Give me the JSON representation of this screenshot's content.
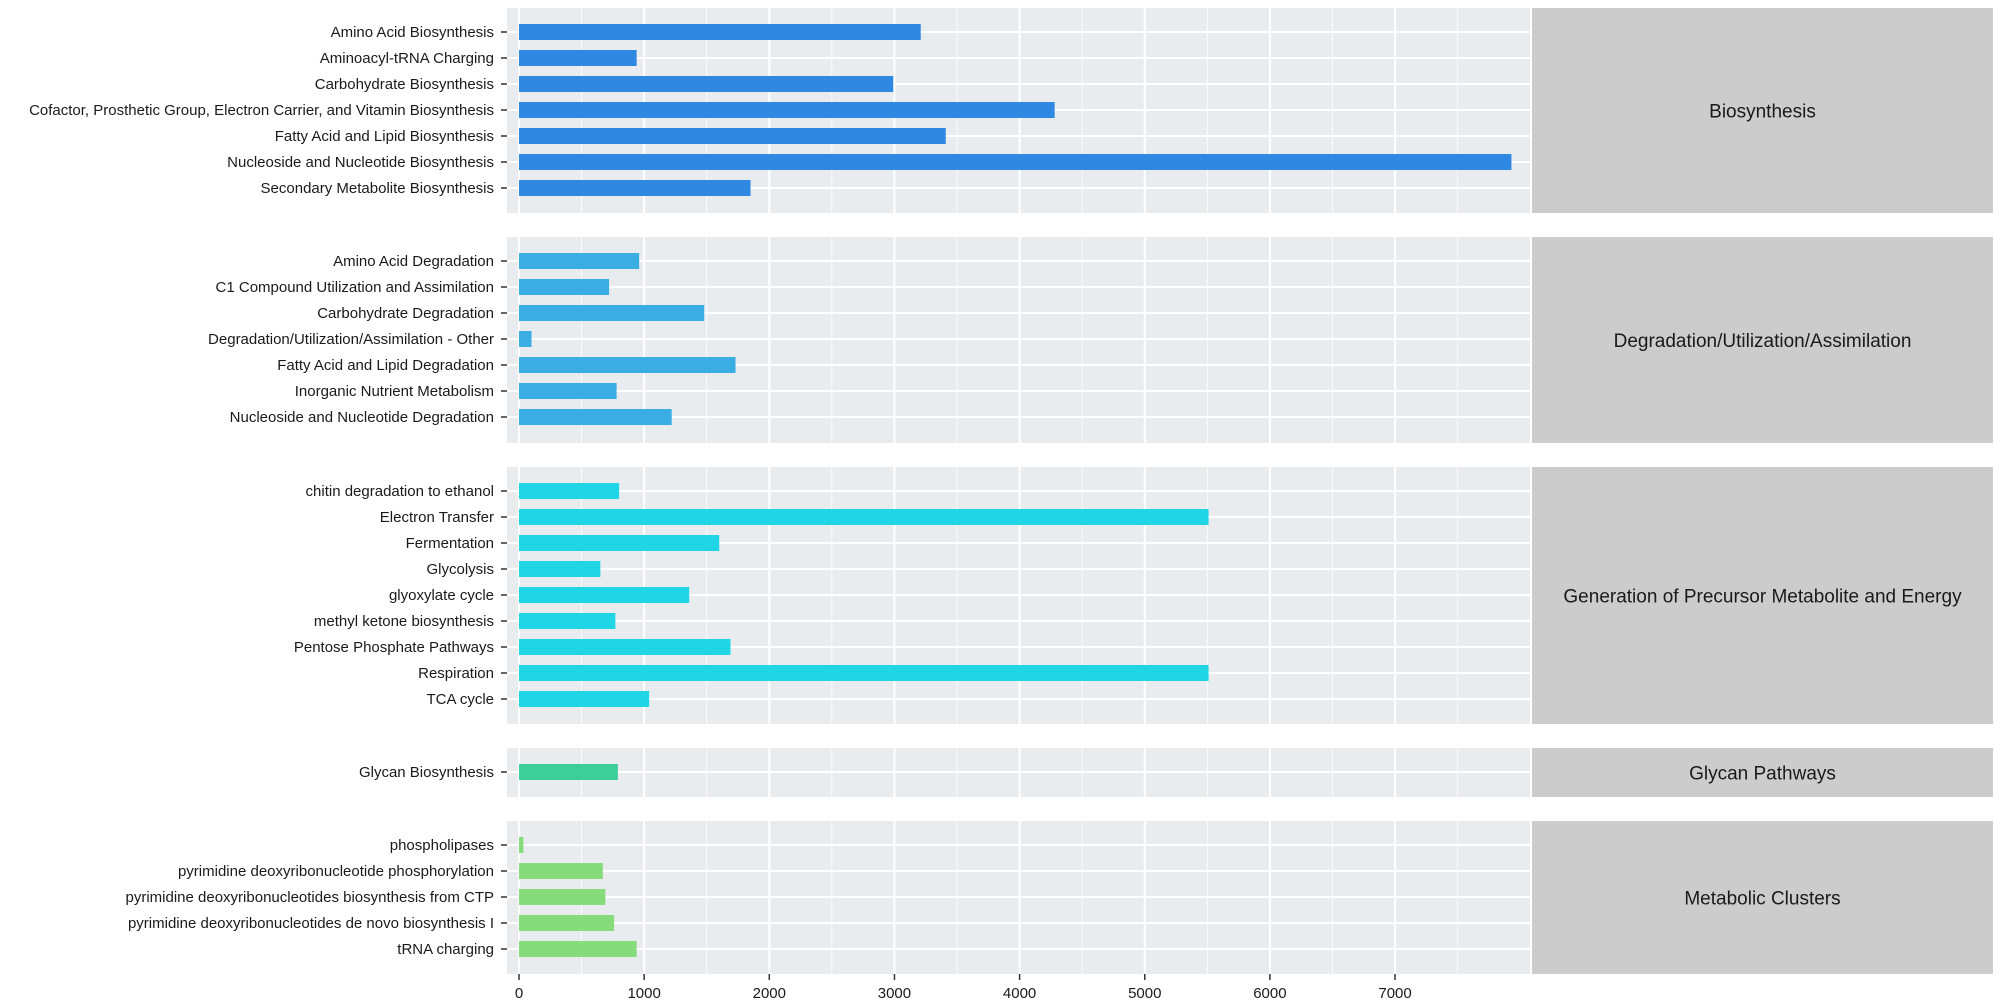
{
  "chart_data": {
    "type": "bar",
    "orientation": "horizontal",
    "faceted": true,
    "grid": true,
    "xlim": [
      0,
      8000
    ],
    "xticks": [
      0,
      1000,
      2000,
      3000,
      4000,
      5000,
      6000,
      7000
    ],
    "xlabel": "",
    "ylabel": "",
    "title": "",
    "facets": [
      {
        "name": "Biosynthesis",
        "color": "#2f89e3",
        "categories": [
          "Amino Acid Biosynthesis",
          "Aminoacyl-tRNA Charging",
          "Carbohydrate Biosynthesis",
          "Cofactor, Prosthetic Group, Electron Carrier, and Vitamin Biosynthesis",
          "Fatty Acid and Lipid Biosynthesis",
          "Nucleoside and Nucleotide Biosynthesis",
          "Secondary Metabolite Biosynthesis"
        ],
        "values": [
          3210,
          940,
          2990,
          4280,
          3410,
          7930,
          1850
        ]
      },
      {
        "name": "Degradation/Utilization/Assimilation",
        "color": "#3aaee3",
        "categories": [
          "Amino Acid Degradation",
          "C1 Compound Utilization and Assimilation",
          "Carbohydrate Degradation",
          "Degradation/Utilization/Assimilation - Other",
          "Fatty Acid and Lipid Degradation",
          "Inorganic Nutrient Metabolism",
          "Nucleoside and Nucleotide Degradation"
        ],
        "values": [
          960,
          720,
          1480,
          100,
          1730,
          780,
          1220
        ]
      },
      {
        "name": "Generation of Precursor Metabolite and Energy",
        "color": "#1fd5e6",
        "categories": [
          "chitin degradation to ethanol",
          "Electron Transfer",
          "Fermentation",
          "Glycolysis",
          "glyoxylate cycle",
          "methyl ketone biosynthesis",
          "Pentose Phosphate Pathways",
          "Respiration",
          "TCA cycle"
        ],
        "values": [
          800,
          5510,
          1600,
          650,
          1360,
          770,
          1690,
          5510,
          1040
        ]
      },
      {
        "name": "Glycan Pathways",
        "color": "#3ccf9a",
        "categories": [
          "Glycan Biosynthesis"
        ],
        "values": [
          790
        ]
      },
      {
        "name": "Metabolic Clusters",
        "color": "#86dc7a",
        "categories": [
          "phospholipases",
          "pyrimidine deoxyribonucleotide phosphorylation",
          "pyrimidine deoxyribonucleotides biosynthesis from CTP",
          "pyrimidine deoxyribonucleotides de novo biosynthesis I",
          "tRNA charging"
        ],
        "values": [
          35,
          670,
          690,
          760,
          940
        ]
      }
    ]
  },
  "colors": {
    "panel_bg": "#e8ecef",
    "grid_line": "#ffffff",
    "strip_bg": "#cccccc",
    "text": "#1a1a1a",
    "axis_tick": "#333333"
  }
}
